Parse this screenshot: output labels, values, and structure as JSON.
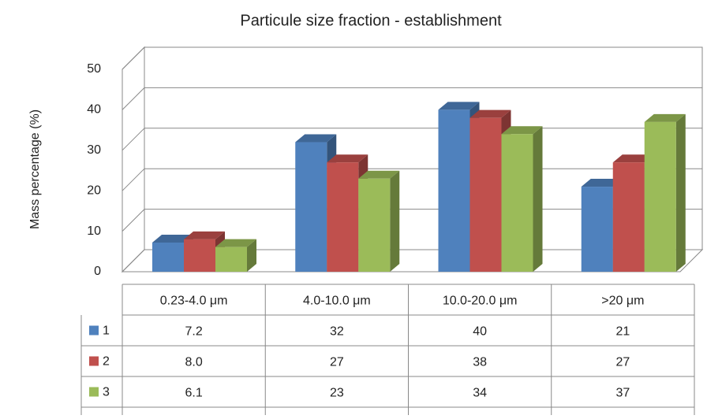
{
  "chart_data": {
    "type": "bar3d",
    "title": "Particule size fraction - establishment",
    "y_label": "Mass percentage (%)",
    "categories": [
      "0.23-4.0 μm",
      "4.0-10.0 μm",
      "10.0-20.0 μm",
      ">20 μm"
    ],
    "series": [
      {
        "name": "1",
        "color": "#4f81bd",
        "values": [
          7.2,
          32,
          40,
          21
        ]
      },
      {
        "name": "2",
        "color": "#c0504d",
        "values": [
          8.0,
          27,
          38,
          27
        ],
        "value_labels": [
          "8.0",
          "27",
          "38",
          "27"
        ]
      },
      {
        "name": "3",
        "color": "#9bbb59",
        "values": [
          6.1,
          23,
          34,
          37
        ]
      }
    ],
    "ylim": [
      0,
      50
    ],
    "yticks": [
      0,
      10,
      20,
      30,
      40,
      50
    ],
    "grid": true
  }
}
